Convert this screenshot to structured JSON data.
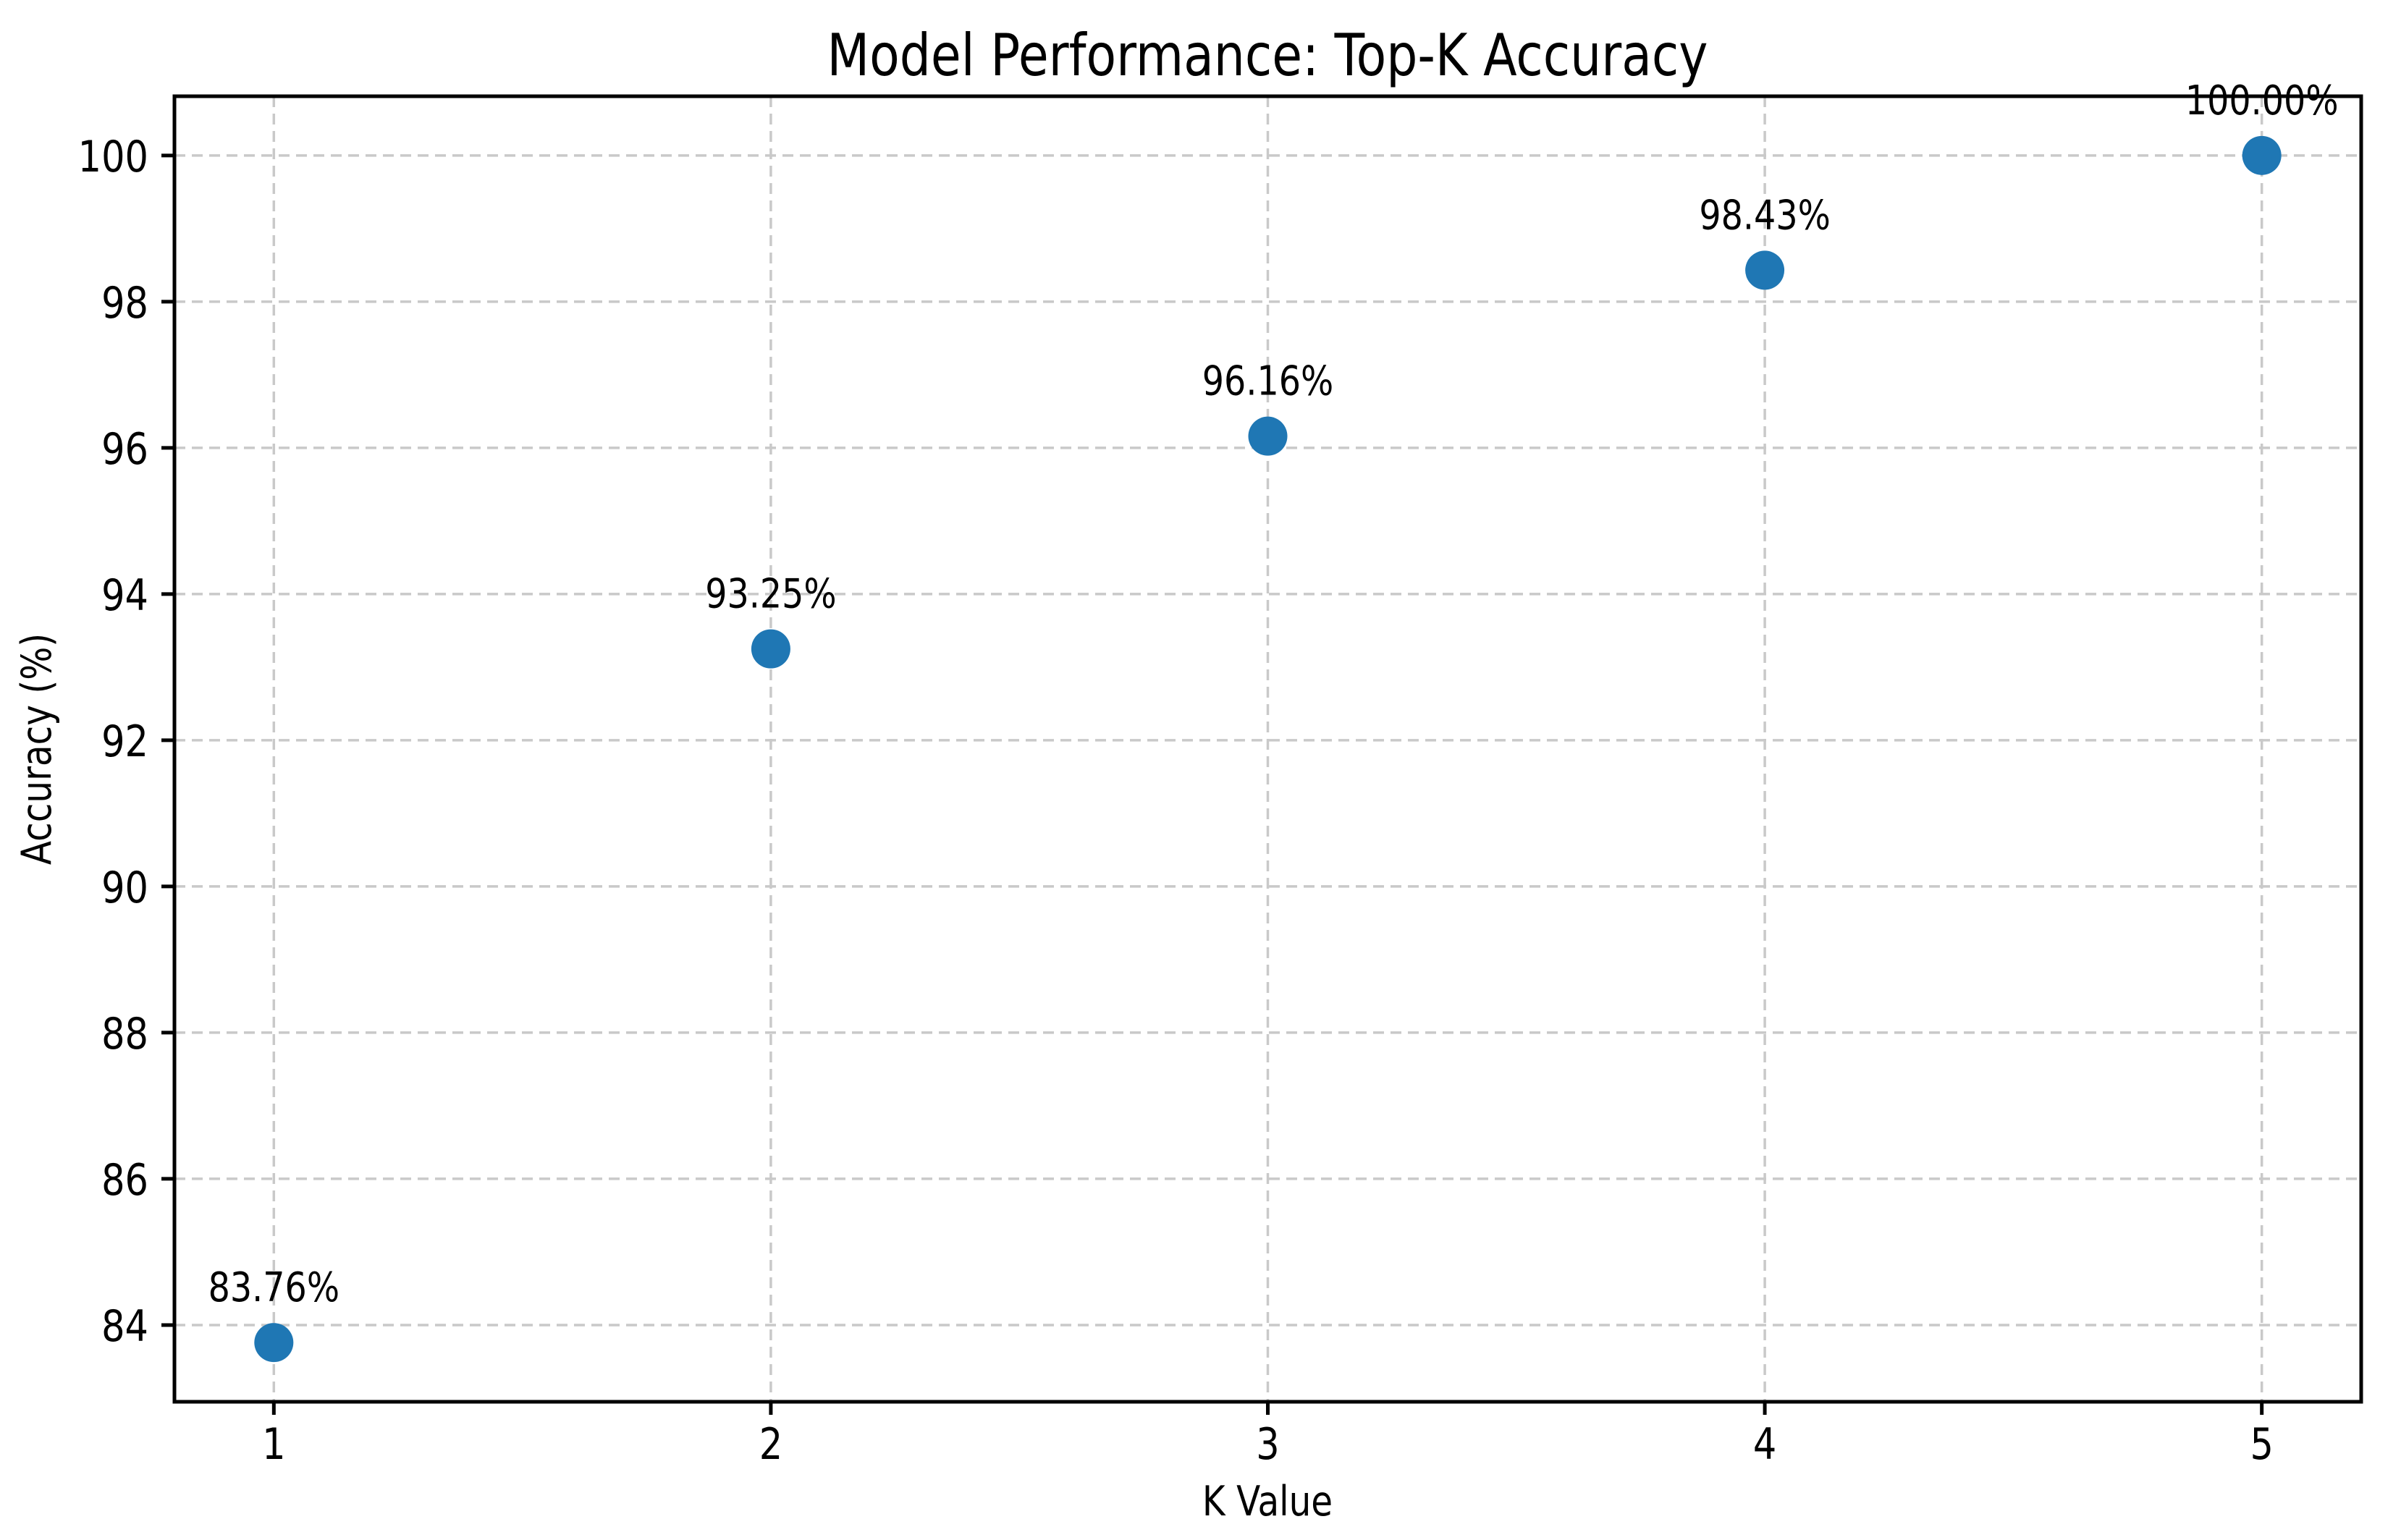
{
  "chart_data": {
    "type": "scatter",
    "title": "Model Performance: Top-K Accuracy",
    "xlabel": "K Value",
    "ylabel": "Accuracy (%)",
    "x": [
      1,
      2,
      3,
      4,
      5
    ],
    "y": [
      83.76,
      93.25,
      96.16,
      98.43,
      100.0
    ],
    "point_labels": [
      "83.76%",
      "93.25%",
      "96.16%",
      "98.43%",
      "100.00%"
    ],
    "x_ticks": [
      1,
      2,
      3,
      4,
      5
    ],
    "x_tick_labels": [
      "1",
      "2",
      "3",
      "4",
      "5"
    ],
    "y_ticks": [
      84,
      86,
      88,
      90,
      92,
      94,
      96,
      98,
      100
    ],
    "y_tick_labels": [
      "84",
      "86",
      "88",
      "90",
      "92",
      "94",
      "96",
      "98",
      "100"
    ],
    "xlim": [
      0.8,
      5.2
    ],
    "ylim": [
      82.95,
      100.81
    ],
    "grid": true,
    "grid_style": "dashed",
    "legend_position": "none",
    "marker_color": "#1f77b4",
    "grid_color": "#c9c9c9",
    "spine_color": "#000000",
    "text_color": "#000000",
    "background_color": "#ffffff"
  }
}
